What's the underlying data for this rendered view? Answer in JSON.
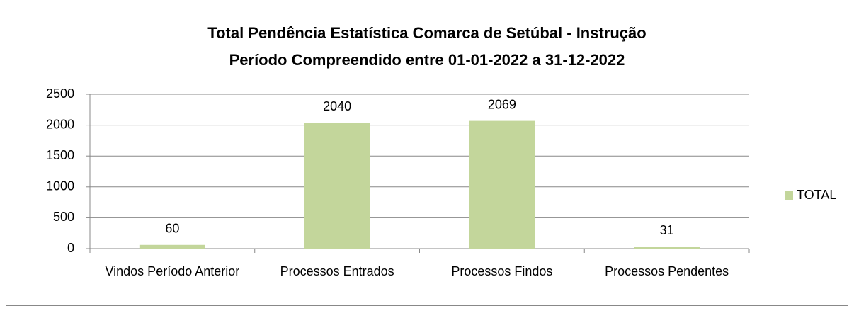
{
  "chart_data": {
    "type": "bar",
    "title": [
      "Total Pendência Estatística Comarca de Setúbal - Instrução",
      "Período Compreendido entre 01-01-2022 a 31-12-2022"
    ],
    "categories": [
      "Vindos Período Anterior",
      "Processos Entrados",
      "Processos Findos",
      "Processos Pendentes"
    ],
    "series": [
      {
        "name": "TOTAL",
        "color": "#c3d69b",
        "values": [
          60,
          2040,
          2069,
          31
        ]
      }
    ],
    "ylim": [
      0,
      2500
    ],
    "yticks": [
      0,
      500,
      1000,
      1500,
      2000,
      2500
    ],
    "grid": true,
    "legend": "right"
  }
}
